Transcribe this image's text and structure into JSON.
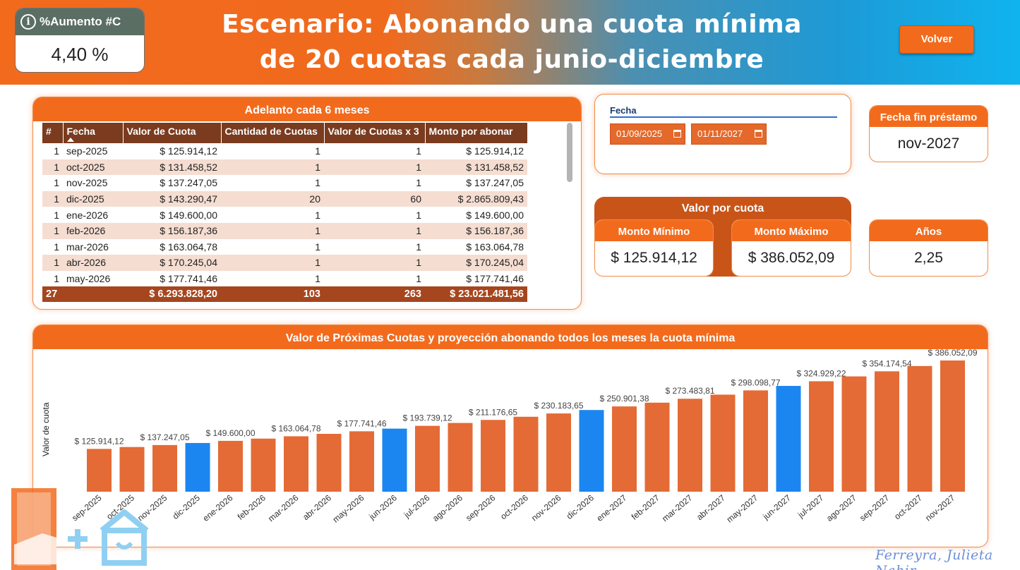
{
  "header": {
    "title_line1": "Escenario: Abonando una cuota mínima",
    "title_line2": "de 20 cuotas cada junio-diciembre",
    "kpi_label": "%Aumento #C",
    "kpi_value": "4,40 %",
    "back_button": "Volver"
  },
  "table": {
    "title": "Adelanto cada 6 meses",
    "columns": [
      "#",
      "Fecha",
      "Valor de Cuota",
      "Cantidad de Cuotas",
      "Valor de Cuotas x 3",
      "Monto por abonar"
    ],
    "rows": [
      [
        "1",
        "sep-2025",
        "$ 125.914,12",
        "1",
        "1",
        "$ 125.914,12"
      ],
      [
        "1",
        "oct-2025",
        "$ 131.458,52",
        "1",
        "1",
        "$ 131.458,52"
      ],
      [
        "1",
        "nov-2025",
        "$ 137.247,05",
        "1",
        "1",
        "$ 137.247,05"
      ],
      [
        "1",
        "dic-2025",
        "$ 143.290,47",
        "20",
        "60",
        "$ 2.865.809,43"
      ],
      [
        "1",
        "ene-2026",
        "$ 149.600,00",
        "1",
        "1",
        "$ 149.600,00"
      ],
      [
        "1",
        "feb-2026",
        "$ 156.187,36",
        "1",
        "1",
        "$ 156.187,36"
      ],
      [
        "1",
        "mar-2026",
        "$ 163.064,78",
        "1",
        "1",
        "$ 163.064,78"
      ],
      [
        "1",
        "abr-2026",
        "$ 170.245,04",
        "1",
        "1",
        "$ 170.245,04"
      ],
      [
        "1",
        "may-2026",
        "$ 177.741,46",
        "1",
        "1",
        "$ 177.741,46"
      ]
    ],
    "totals": [
      "27",
      "",
      "$ 6.293.828,20",
      "103",
      "263",
      "$ 23.021.481,56"
    ]
  },
  "date_filter": {
    "label": "Fecha",
    "start": "01/09/2025",
    "end": "01/11/2027"
  },
  "end_date_card": {
    "label": "Fecha fin préstamo",
    "value": "nov-2027"
  },
  "value_per_quota": {
    "title": "Valor por cuota",
    "min_label": "Monto Mínimo",
    "min_value": "$ 125.914,12",
    "max_label": "Monto Máximo",
    "max_value": "$ 386.052,09"
  },
  "years_card": {
    "label": "Años",
    "value": "2,25"
  },
  "signature": "Ferreyra, Julieta Nahir",
  "colors": {
    "orange": "#f26b1d",
    "bar_orange": "#e46b35",
    "bar_blue": "#1b86f0",
    "header_brown": "#7a3b1f"
  },
  "chart_data": {
    "type": "bar",
    "title": "Valor de Próximas Cuotas y proyección abonando todos los meses la cuota mínima",
    "ylabel": "Valor de cuota",
    "xlabel": "",
    "ylim": [
      0,
      386052.09
    ],
    "categories": [
      "sep-2025",
      "oct-2025",
      "nov-2025",
      "dic-2025",
      "ene-2026",
      "feb-2026",
      "mar-2026",
      "abr-2026",
      "may-2026",
      "jun-2026",
      "jul-2026",
      "ago-2026",
      "sep-2026",
      "oct-2026",
      "nov-2026",
      "dic-2026",
      "ene-2027",
      "feb-2027",
      "mar-2027",
      "abr-2027",
      "may-2027",
      "jun-2027",
      "jul-2027",
      "ago-2027",
      "sep-2027",
      "oct-2027",
      "nov-2027"
    ],
    "values": [
      125914.12,
      131458.52,
      137247.05,
      143290.47,
      149600.0,
      156187.36,
      163064.78,
      170245.04,
      177741.46,
      185567.75,
      193739.12,
      202270.28,
      211176.65,
      220474.65,
      230183.65,
      240318.37,
      250901.38,
      261949.63,
      273483.81,
      285525.33,
      298098.77,
      311224.53,
      324929.22,
      339236.17,
      354174.54,
      369769.89,
      386052.09
    ],
    "highlight": [
      "dic-2025",
      "jun-2026",
      "dic-2026",
      "jun-2027"
    ],
    "data_labels": [
      {
        "category": "sep-2025",
        "text": "$ 125.914,12"
      },
      {
        "category": "nov-2025",
        "text": "$ 137.247,05"
      },
      {
        "category": "ene-2026",
        "text": "$ 149.600,00"
      },
      {
        "category": "mar-2026",
        "text": "$ 163.064,78"
      },
      {
        "category": "may-2026",
        "text": "$ 177.741,46"
      },
      {
        "category": "jul-2026",
        "text": "$ 193.739,12"
      },
      {
        "category": "sep-2026",
        "text": "$ 211.176,65"
      },
      {
        "category": "nov-2026",
        "text": "$ 230.183,65"
      },
      {
        "category": "ene-2027",
        "text": "$ 250.901,38"
      },
      {
        "category": "mar-2027",
        "text": "$ 273.483,81"
      },
      {
        "category": "may-2027",
        "text": "$ 298.098,77"
      },
      {
        "category": "jul-2027",
        "text": "$ 324.929,22"
      },
      {
        "category": "sep-2027",
        "text": "$ 354.174,54"
      },
      {
        "category": "nov-2027",
        "text": "$ 386.052,09"
      }
    ],
    "grid": false,
    "legend": "none"
  }
}
